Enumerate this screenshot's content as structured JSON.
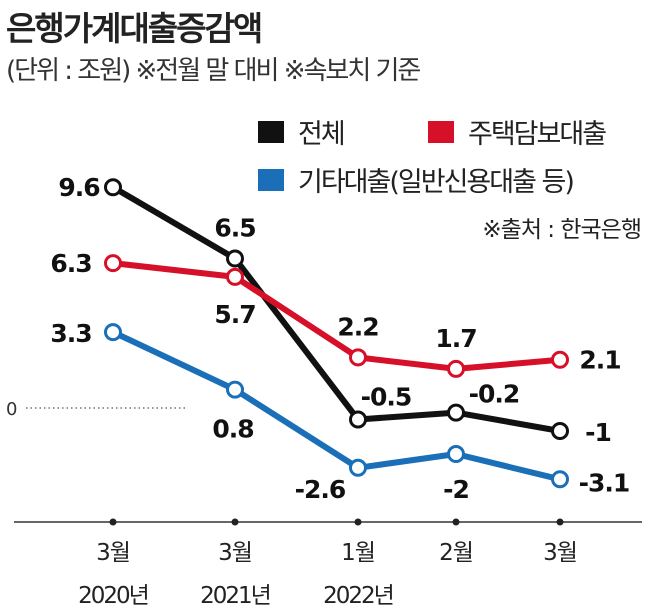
{
  "title": "은행가계대출증감액",
  "subtitle": "(단위 : 조원) ※전월 말 대비  ※속보치 기준",
  "source": "※출처 : 한국은행",
  "chart_data": {
    "type": "line",
    "title": "은행가계대출증감액",
    "unit": "조원",
    "categories": [
      [
        "3월",
        "2020년"
      ],
      [
        "3월",
        "2021년"
      ],
      [
        "1월",
        "2022년"
      ],
      [
        "2월",
        ""
      ],
      [
        "3월",
        ""
      ]
    ],
    "zero_label": "0",
    "legend_placement": "top-right",
    "series": [
      {
        "name": "전체",
        "color": "#111111",
        "values": [
          9.6,
          6.5,
          -0.5,
          -0.2,
          -1
        ],
        "labels": [
          "9.6",
          "6.5",
          "-0.5",
          "-0.2",
          "-1"
        ]
      },
      {
        "name": "주택담보대출",
        "color": "#d7102a",
        "values": [
          6.3,
          5.7,
          2.2,
          1.7,
          2.1
        ],
        "labels": [
          "6.3",
          "5.7",
          "2.2",
          "1.7",
          "2.1"
        ]
      },
      {
        "name": "기타대출(일반신용대출 등)",
        "color": "#1a6fb8",
        "values": [
          3.3,
          0.8,
          -2.6,
          -2,
          -3.1
        ],
        "labels": [
          "3.3",
          "0.8",
          "-2.6",
          "-2",
          "-3.1"
        ]
      }
    ]
  }
}
